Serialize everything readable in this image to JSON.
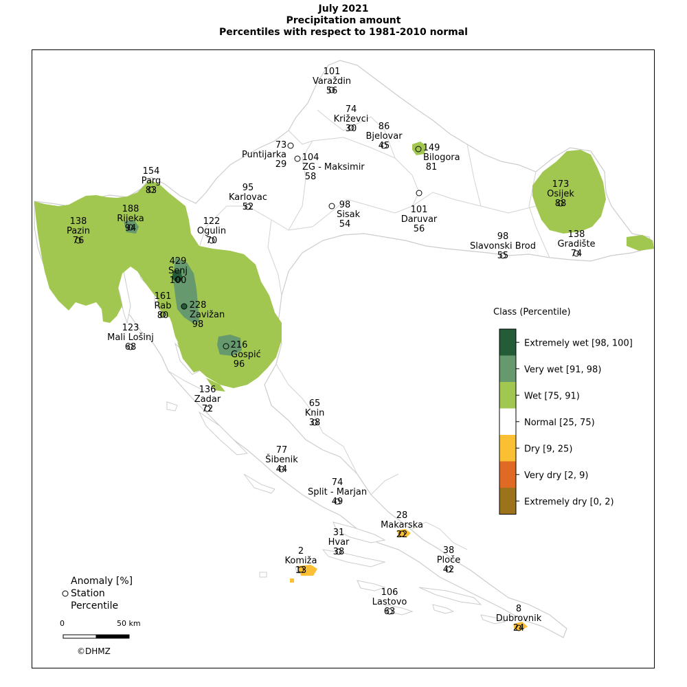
{
  "title": {
    "line1": "July 2021",
    "line2": "Precipitation amount",
    "line3": "Percentiles with respect to 1981-2010 normal"
  },
  "legend": {
    "title": "Class (Percentile)",
    "classes": [
      {
        "label": "Extremely wet [98, 100]",
        "color": "#245c38"
      },
      {
        "label": "Very wet [91, 98)",
        "color": "#66996e"
      },
      {
        "label": "Wet [75, 91)",
        "color": "#a2c750"
      },
      {
        "label": "Normal [25, 75)",
        "color": "#ffffff"
      },
      {
        "label": "Dry [9, 25)",
        "color": "#fbbf34"
      },
      {
        "label": "Very dry [2, 9)",
        "color": "#e06a23"
      },
      {
        "label": "Extremely dry [0, 2)",
        "color": "#9c721b"
      }
    ]
  },
  "key": {
    "anomaly": "Anomaly [%]",
    "station": "Station",
    "percentile": "Percentile"
  },
  "scale_bar": {
    "zero": "0",
    "end": "50 km"
  },
  "copyright": "©DHMZ",
  "stations": [
    {
      "name": "Varaždin",
      "anomaly": "101",
      "percentile": "56",
      "cls": "normal"
    },
    {
      "name": "Križevci",
      "anomaly": "74",
      "percentile": "30",
      "cls": "normal"
    },
    {
      "name": "Bjelovar",
      "anomaly": "86",
      "percentile": "45",
      "cls": "normal"
    },
    {
      "name": "Bilogora",
      "anomaly": "149",
      "percentile": "81",
      "cls": "wet"
    },
    {
      "name": "Puntijarka",
      "anomaly": "73",
      "percentile": "29",
      "cls": "normal"
    },
    {
      "name": "ZG - Maksimir",
      "anomaly": "104",
      "percentile": "58",
      "cls": "normal"
    },
    {
      "name": "Parg",
      "anomaly": "154",
      "percentile": "83",
      "cls": "wet"
    },
    {
      "name": "Karlovac",
      "anomaly": "95",
      "percentile": "52",
      "cls": "normal"
    },
    {
      "name": "Sisak",
      "anomaly": "98",
      "percentile": "54",
      "cls": "normal"
    },
    {
      "name": "Daruvar",
      "anomaly": "101",
      "percentile": "56",
      "cls": "normal"
    },
    {
      "name": "Osijek",
      "anomaly": "173",
      "percentile": "88",
      "cls": "wet"
    },
    {
      "name": "Rijeka",
      "anomaly": "188",
      "percentile": "94",
      "cls": "verywet"
    },
    {
      "name": "Pazin",
      "anomaly": "138",
      "percentile": "76",
      "cls": "wet"
    },
    {
      "name": "Ogulin",
      "anomaly": "122",
      "percentile": "70",
      "cls": "normal"
    },
    {
      "name": "Gradište",
      "anomaly": "138",
      "percentile": "74",
      "cls": "normal"
    },
    {
      "name": "Slavonski Brod",
      "anomaly": "98",
      "percentile": "55",
      "cls": "normal"
    },
    {
      "name": "Senj",
      "anomaly": "429",
      "percentile": "100",
      "cls": "extwet"
    },
    {
      "name": "Rab",
      "anomaly": "161",
      "percentile": "80",
      "cls": "wet"
    },
    {
      "name": "Zavižan",
      "anomaly": "228",
      "percentile": "98",
      "cls": "extwet"
    },
    {
      "name": "Mali Lošinj",
      "anomaly": "123",
      "percentile": "68",
      "cls": "normal"
    },
    {
      "name": "Gospić",
      "anomaly": "216",
      "percentile": "96",
      "cls": "verywet"
    },
    {
      "name": "Zadar",
      "anomaly": "136",
      "percentile": "72",
      "cls": "normal"
    },
    {
      "name": "Knin",
      "anomaly": "65",
      "percentile": "38",
      "cls": "normal"
    },
    {
      "name": "Šibenik",
      "anomaly": "77",
      "percentile": "44",
      "cls": "normal"
    },
    {
      "name": "Split - Marjan",
      "anomaly": "74",
      "percentile": "49",
      "cls": "normal"
    },
    {
      "name": "Makarska",
      "anomaly": "28",
      "percentile": "22",
      "cls": "dry"
    },
    {
      "name": "Hvar",
      "anomaly": "31",
      "percentile": "38",
      "cls": "normal"
    },
    {
      "name": "Ploče",
      "anomaly": "38",
      "percentile": "42",
      "cls": "normal"
    },
    {
      "name": "Komiža",
      "anomaly": "2",
      "percentile": "13",
      "cls": "dry"
    },
    {
      "name": "Lastovo",
      "anomaly": "106",
      "percentile": "63",
      "cls": "normal"
    },
    {
      "name": "Dubrovnik",
      "anomaly": "8",
      "percentile": "24",
      "cls": "dry"
    }
  ]
}
